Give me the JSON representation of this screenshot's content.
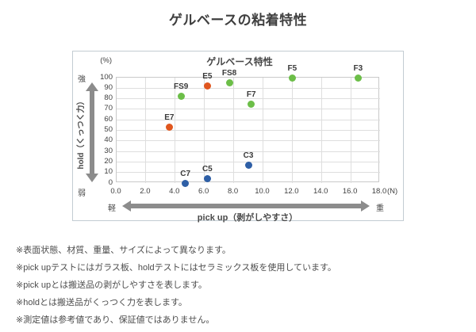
{
  "page": {
    "title": "ゲルベースの粘着特性"
  },
  "chart_data": {
    "type": "scatter",
    "title": "ゲルベース特性",
    "xlabel": "pick up（剥がしやすさ）",
    "ylabel": "hold（くっつく力）",
    "x_unit": "(N)",
    "y_unit": "(%)",
    "xlim": [
      0,
      18
    ],
    "ylim": [
      0,
      100
    ],
    "grid": true,
    "x_ticks": [
      "0.0",
      "2.0",
      "4.0",
      "6.0",
      "8.0",
      "10.0",
      "12.0",
      "14.0",
      "16.0",
      "18.0"
    ],
    "y_ticks": [
      "100",
      "90",
      "80",
      "70",
      "60",
      "50",
      "40",
      "30",
      "20",
      "10",
      "0"
    ],
    "y_axis_top_label": "強",
    "y_axis_bottom_label": "弱",
    "x_axis_left_label": "軽",
    "x_axis_right_label": "重",
    "points": [
      {
        "label": "E7",
        "x": 3.6,
        "y": 53,
        "color": "#E0561E"
      },
      {
        "label": "E5",
        "x": 6.2,
        "y": 92,
        "color": "#E0561E"
      },
      {
        "label": "FS9",
        "x": 4.4,
        "y": 82,
        "color": "#6CBE48"
      },
      {
        "label": "FS8",
        "x": 7.7,
        "y": 95,
        "color": "#6CBE48"
      },
      {
        "label": "F7",
        "x": 9.2,
        "y": 75,
        "color": "#6CBE48"
      },
      {
        "label": "F5",
        "x": 12.0,
        "y": 100,
        "color": "#6CBE48"
      },
      {
        "label": "F3",
        "x": 16.5,
        "y": 100,
        "color": "#6CBE48"
      },
      {
        "label": "C7",
        "x": 4.7,
        "y": 0,
        "color": "#2E5FA6"
      },
      {
        "label": "C5",
        "x": 6.2,
        "y": 4,
        "color": "#2E5FA6"
      },
      {
        "label": "C3",
        "x": 9.0,
        "y": 17,
        "color": "#2E5FA6"
      }
    ],
    "colors": {
      "orange_series": "#E0561E",
      "green_series": "#6CBE48",
      "blue_series": "#2E5FA6",
      "axis_arrow": "#8C8C8C",
      "grid": "#dedede"
    }
  },
  "footnotes": [
    "※表面状態、材質、重量、サイズによって異なります。",
    "※pick upテストにはガラス板、holdテストにはセラミックス板を使用しています。",
    "※pick upとは搬送品の剥がしやすさを表します。",
    "※holdとは搬送品がくっつく力を表します。",
    "※測定値は参考値であり、保証値ではありません。"
  ]
}
